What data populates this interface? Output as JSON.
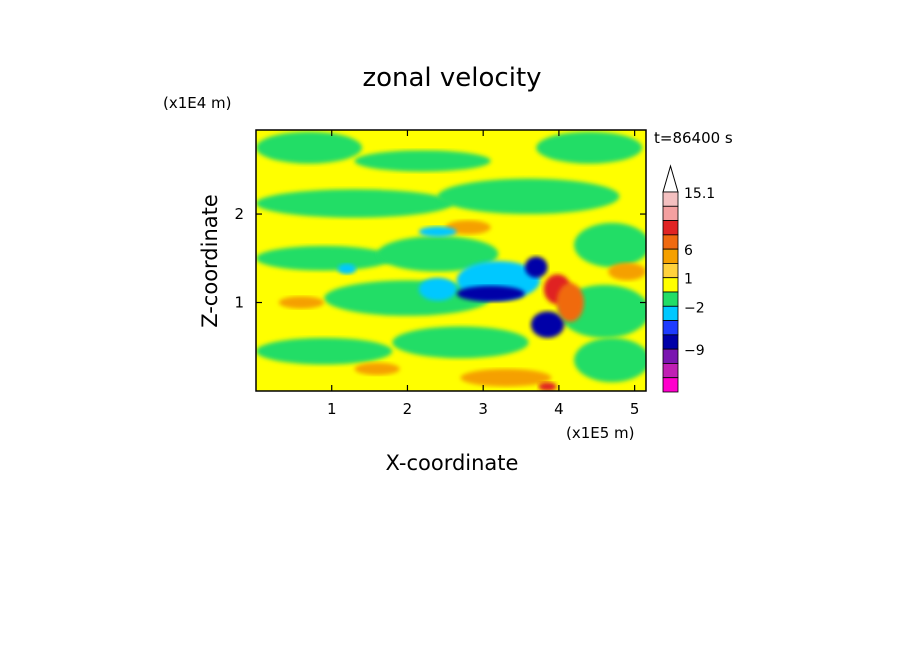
{
  "chart_data": {
    "type": "heatmap",
    "title": "zonal velocity",
    "xlabel": "X-coordinate",
    "ylabel": "Z-coordinate",
    "x_scale_label": "(x1E5 m)",
    "y_scale_label": "(x1E4 m)",
    "time_label": "t=86400 s",
    "xlim": [
      0,
      5.15
    ],
    "ylim": [
      0,
      2.95
    ],
    "x_ticks": [
      "1",
      "2",
      "3",
      "4",
      "5"
    ],
    "y_ticks": [
      "1",
      "2"
    ],
    "colorbar": {
      "tick_labels": [
        "15.1",
        "6",
        "1",
        "−2",
        "−9"
      ],
      "levels_top_to_bottom": [
        {
          "color": "#f4c0c0"
        },
        {
          "color": "#f4a0a0"
        },
        {
          "color": "#e02424"
        },
        {
          "color": "#f06a10"
        },
        {
          "color": "#f5a000"
        },
        {
          "color": "#ffd23c"
        },
        {
          "color": "#ffff00"
        },
        {
          "color": "#22dd66"
        },
        {
          "color": "#00c8ff"
        },
        {
          "color": "#1e3cff"
        },
        {
          "color": "#0000a8"
        },
        {
          "color": "#7a16b0"
        },
        {
          "color": "#c020b4"
        },
        {
          "color": "#ff00cc"
        }
      ]
    },
    "field": {
      "background_color": "#ffff00",
      "features": [
        {
          "kind": "green",
          "color": "#22dd66",
          "cx": 0.7,
          "cz": 2.75,
          "rx": 0.7,
          "rz": 0.18
        },
        {
          "kind": "green",
          "color": "#22dd66",
          "cx": 2.2,
          "cz": 2.6,
          "rx": 0.9,
          "rz": 0.12
        },
        {
          "kind": "green",
          "color": "#22dd66",
          "cx": 4.4,
          "cz": 2.75,
          "rx": 0.7,
          "rz": 0.18
        },
        {
          "kind": "green",
          "color": "#22dd66",
          "cx": 1.3,
          "cz": 2.12,
          "rx": 1.3,
          "rz": 0.16
        },
        {
          "kind": "green",
          "color": "#22dd66",
          "cx": 3.6,
          "cz": 2.2,
          "rx": 1.2,
          "rz": 0.2
        },
        {
          "kind": "green",
          "color": "#22dd66",
          "cx": 0.9,
          "cz": 1.5,
          "rx": 0.9,
          "rz": 0.14
        },
        {
          "kind": "green",
          "color": "#22dd66",
          "cx": 2.4,
          "cz": 1.55,
          "rx": 0.8,
          "rz": 0.2
        },
        {
          "kind": "green",
          "color": "#22dd66",
          "cx": 4.7,
          "cz": 1.65,
          "rx": 0.5,
          "rz": 0.25
        },
        {
          "kind": "green",
          "color": "#22dd66",
          "cx": 2.0,
          "cz": 1.05,
          "rx": 1.1,
          "rz": 0.2
        },
        {
          "kind": "green",
          "color": "#22dd66",
          "cx": 4.6,
          "cz": 0.9,
          "rx": 0.6,
          "rz": 0.3
        },
        {
          "kind": "green",
          "color": "#22dd66",
          "cx": 0.9,
          "cz": 0.45,
          "rx": 0.9,
          "rz": 0.15
        },
        {
          "kind": "green",
          "color": "#22dd66",
          "cx": 2.7,
          "cz": 0.55,
          "rx": 0.9,
          "rz": 0.18
        },
        {
          "kind": "green",
          "color": "#22dd66",
          "cx": 4.7,
          "cz": 0.35,
          "rx": 0.5,
          "rz": 0.25
        },
        {
          "kind": "orange",
          "color": "#f5a000",
          "cx": 3.3,
          "cz": 0.15,
          "rx": 0.6,
          "rz": 0.1
        },
        {
          "kind": "orange",
          "color": "#f5a000",
          "cx": 1.6,
          "cz": 0.25,
          "rx": 0.3,
          "rz": 0.07
        },
        {
          "kind": "orange",
          "color": "#f5a000",
          "cx": 4.9,
          "cz": 1.35,
          "rx": 0.25,
          "rz": 0.1
        },
        {
          "kind": "orange",
          "color": "#f5a000",
          "cx": 0.6,
          "cz": 1.0,
          "rx": 0.3,
          "rz": 0.07
        },
        {
          "kind": "orange",
          "color": "#f5a000",
          "cx": 2.8,
          "cz": 1.85,
          "rx": 0.3,
          "rz": 0.08
        },
        {
          "kind": "cyan",
          "color": "#00c8ff",
          "cx": 2.4,
          "cz": 1.15,
          "rx": 0.25,
          "rz": 0.13
        },
        {
          "kind": "cyan",
          "color": "#00c8ff",
          "cx": 2.4,
          "cz": 1.8,
          "rx": 0.25,
          "rz": 0.06
        },
        {
          "kind": "cyan",
          "color": "#00c8ff",
          "cx": 1.2,
          "cz": 1.38,
          "rx": 0.12,
          "rz": 0.06
        },
        {
          "kind": "cyan",
          "color": "#00c8ff",
          "cx": 3.2,
          "cz": 1.25,
          "rx": 0.55,
          "rz": 0.22
        },
        {
          "kind": "blue",
          "color": "#0000a8",
          "cx": 3.1,
          "cz": 1.1,
          "rx": 0.45,
          "rz": 0.09
        },
        {
          "kind": "blue",
          "color": "#0000a8",
          "cx": 3.85,
          "cz": 0.75,
          "rx": 0.22,
          "rz": 0.15
        },
        {
          "kind": "blue",
          "color": "#0000a8",
          "cx": 3.7,
          "cz": 1.4,
          "rx": 0.15,
          "rz": 0.12
        },
        {
          "kind": "red",
          "color": "#e02424",
          "cx": 3.98,
          "cz": 1.15,
          "rx": 0.18,
          "rz": 0.17
        },
        {
          "kind": "orange",
          "color": "#f06a10",
          "cx": 4.15,
          "cz": 1.0,
          "rx": 0.18,
          "rz": 0.22
        },
        {
          "kind": "red",
          "color": "#e02424",
          "cx": 3.85,
          "cz": 0.05,
          "rx": 0.12,
          "rz": 0.05
        }
      ]
    }
  }
}
